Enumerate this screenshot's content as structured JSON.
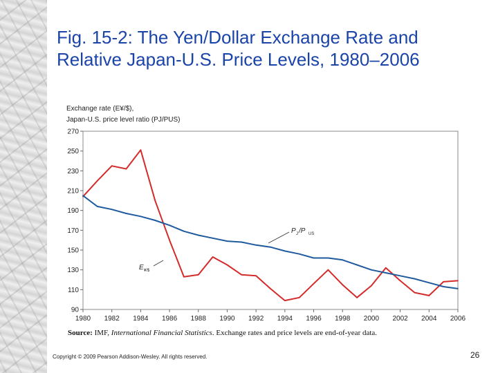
{
  "slide": {
    "title_line1": "Fig. 15-2: The Yen/Dollar Exchange Rate and",
    "title_line2": "Relative Japan-U.S. Price Levels, 1980–2006",
    "source_label": "Source:",
    "source_org": " IMF, ",
    "source_pub": "International Financial Statistics",
    "source_rest": ". Exchange rates and price levels are end-of-year data.",
    "copyright": "Copyright © 2009 Pearson Addison-Wesley. All rights reserved.",
    "page_number": "26"
  },
  "chart_data": {
    "type": "line",
    "title": "",
    "ylabel_line1": "Exchange rate (E¥/$),",
    "ylabel_line2": "Japan-U.S. price level ratio (PJ/PUS)",
    "xlabel": "",
    "xlim": [
      1980,
      2006
    ],
    "ylim": [
      90,
      270
    ],
    "yticks": [
      90,
      110,
      130,
      150,
      170,
      190,
      210,
      230,
      250,
      270
    ],
    "xticks": [
      1980,
      1982,
      1984,
      1986,
      1988,
      1990,
      1992,
      1994,
      1996,
      1998,
      2000,
      2002,
      2004,
      2006
    ],
    "grid": false,
    "series": [
      {
        "name": "E¥/$",
        "label_main": "E",
        "label_sub": "¥/$",
        "color": "#d42a2a",
        "x": [
          1980,
          1981,
          1982,
          1983,
          1984,
          1985,
          1986,
          1987,
          1988,
          1989,
          1990,
          1991,
          1992,
          1993,
          1994,
          1995,
          1996,
          1997,
          1998,
          1999,
          2000,
          2001,
          2002,
          2003,
          2004,
          2005,
          2006
        ],
        "values": [
          204,
          220,
          235,
          232,
          251,
          200,
          160,
          123,
          125,
          143,
          135,
          125,
          124,
          111,
          99,
          102,
          116,
          130,
          115,
          102,
          114,
          132,
          119,
          107,
          104,
          118,
          119
        ]
      },
      {
        "name": "PJ/PUS",
        "label_main": "P",
        "label_sub1": "J",
        "label_sep": "/P",
        "label_sub2": "US",
        "color": "#1f5a9e",
        "x": [
          1980,
          1981,
          1982,
          1983,
          1984,
          1985,
          1986,
          1987,
          1988,
          1989,
          1990,
          1991,
          1992,
          1993,
          1994,
          1995,
          1996,
          1997,
          1998,
          1999,
          2000,
          2001,
          2002,
          2003,
          2004,
          2005,
          2006
        ],
        "values": [
          205,
          194,
          191,
          187,
          184,
          180,
          175,
          169,
          165,
          162,
          159,
          158,
          155,
          153,
          149,
          146,
          142,
          142,
          140,
          135,
          130,
          127,
          124,
          121,
          117,
          113,
          111
        ]
      }
    ]
  }
}
